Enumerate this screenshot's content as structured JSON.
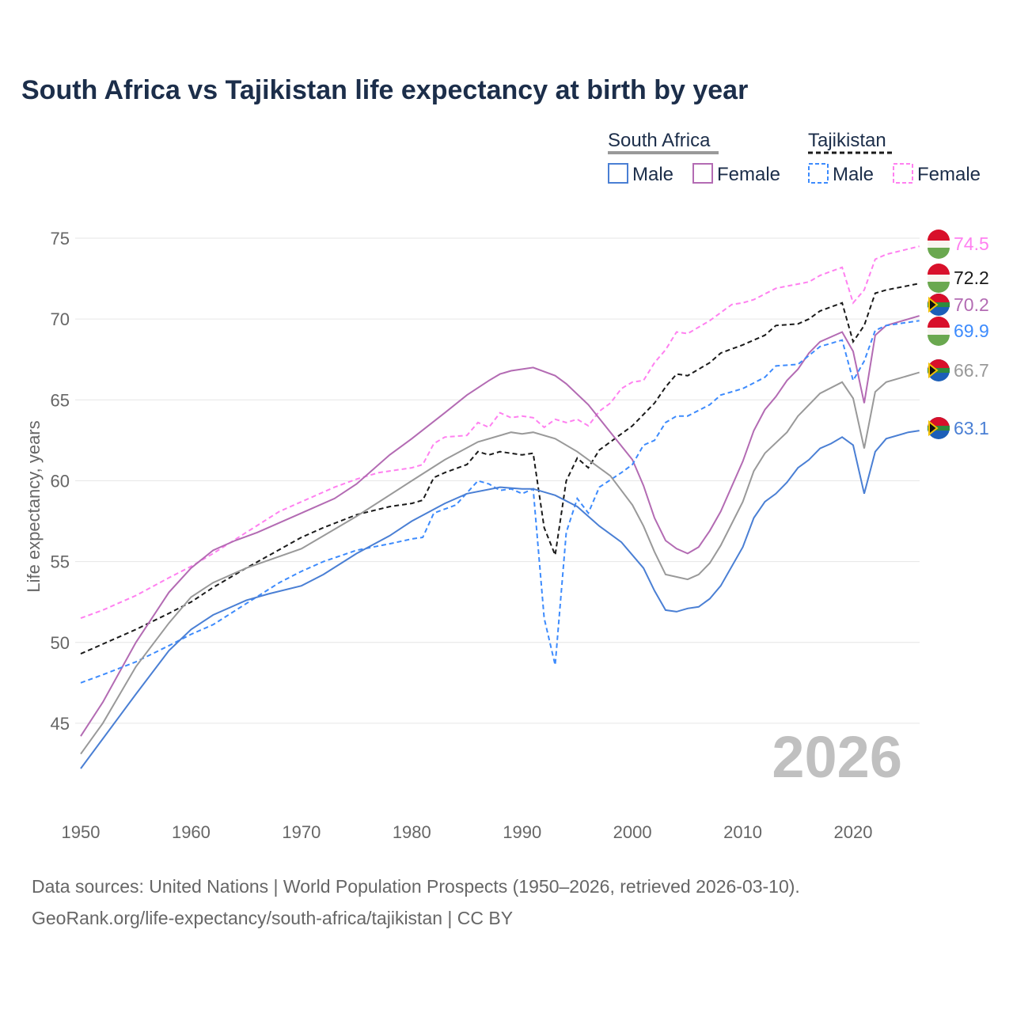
{
  "chart_data": {
    "type": "line",
    "title": "South Africa vs Tajikistan life expectancy at birth by year",
    "ylabel": "Life expectancy, years",
    "xlabel": "",
    "xlim": [
      1950,
      2026
    ],
    "ylim": [
      40.3,
      77
    ],
    "xticks": [
      1950,
      1960,
      1970,
      1980,
      1990,
      2000,
      2010,
      2020
    ],
    "yticks": [
      45,
      50,
      55,
      60,
      65,
      70,
      75
    ],
    "grid": "horizontal",
    "watermark_year": "2026",
    "legend": {
      "placement": "top-right",
      "groups": [
        {
          "name": "South Africa",
          "items": [
            "Male",
            "Female"
          ]
        },
        {
          "name": "Tajikistan",
          "items": [
            "Male",
            "Female"
          ]
        }
      ]
    },
    "series": [
      {
        "name": "Tajikistan Female",
        "country": "Tajikistan",
        "color": "#ff80f0",
        "dash": true,
        "end_label": "74.5",
        "points": [
          [
            1950,
            51.5
          ],
          [
            1952,
            52.0
          ],
          [
            1955,
            52.9
          ],
          [
            1958,
            54.0
          ],
          [
            1960,
            54.7
          ],
          [
            1962,
            55.5
          ],
          [
            1965,
            56.8
          ],
          [
            1968,
            58.1
          ],
          [
            1970,
            58.7
          ],
          [
            1973,
            59.6
          ],
          [
            1975,
            60.1
          ],
          [
            1977,
            60.5
          ],
          [
            1980,
            60.8
          ],
          [
            1981,
            61.0
          ],
          [
            1982,
            62.3
          ],
          [
            1983,
            62.7
          ],
          [
            1985,
            62.8
          ],
          [
            1986,
            63.6
          ],
          [
            1987,
            63.3
          ],
          [
            1988,
            64.2
          ],
          [
            1989,
            63.9
          ],
          [
            1990,
            64.0
          ],
          [
            1991,
            63.9
          ],
          [
            1992,
            63.3
          ],
          [
            1993,
            63.8
          ],
          [
            1994,
            63.6
          ],
          [
            1995,
            63.8
          ],
          [
            1996,
            63.4
          ],
          [
            1997,
            64.3
          ],
          [
            1998,
            64.8
          ],
          [
            1999,
            65.7
          ],
          [
            2000,
            66.1
          ],
          [
            2001,
            66.2
          ],
          [
            2002,
            67.3
          ],
          [
            2003,
            68.1
          ],
          [
            2004,
            69.2
          ],
          [
            2005,
            69.1
          ],
          [
            2007,
            69.9
          ],
          [
            2008,
            70.4
          ],
          [
            2009,
            70.9
          ],
          [
            2010,
            71.0
          ],
          [
            2011,
            71.2
          ],
          [
            2013,
            71.9
          ],
          [
            2016,
            72.3
          ],
          [
            2017,
            72.7
          ],
          [
            2019,
            73.2
          ],
          [
            2020,
            71.0
          ],
          [
            2021,
            71.8
          ],
          [
            2022,
            73.7
          ],
          [
            2023,
            74.0
          ],
          [
            2026,
            74.5
          ]
        ]
      },
      {
        "name": "Tajikistan",
        "country": "Tajikistan",
        "color": "#1a1a1a",
        "dash": true,
        "end_label": "72.2",
        "points": [
          [
            1950,
            49.3
          ],
          [
            1955,
            50.8
          ],
          [
            1958,
            51.8
          ],
          [
            1960,
            52.5
          ],
          [
            1962,
            53.4
          ],
          [
            1965,
            54.6
          ],
          [
            1970,
            56.5
          ],
          [
            1972,
            57.1
          ],
          [
            1975,
            57.9
          ],
          [
            1978,
            58.4
          ],
          [
            1980,
            58.6
          ],
          [
            1981,
            58.8
          ],
          [
            1982,
            60.2
          ],
          [
            1983,
            60.5
          ],
          [
            1985,
            61.0
          ],
          [
            1986,
            61.8
          ],
          [
            1987,
            61.6
          ],
          [
            1988,
            61.8
          ],
          [
            1990,
            61.6
          ],
          [
            1991,
            61.7
          ],
          [
            1992,
            57.1
          ],
          [
            1993,
            55.4
          ],
          [
            1994,
            60.0
          ],
          [
            1995,
            61.4
          ],
          [
            1996,
            60.8
          ],
          [
            1997,
            61.9
          ],
          [
            1999,
            62.9
          ],
          [
            2000,
            63.4
          ],
          [
            2002,
            64.8
          ],
          [
            2003,
            65.8
          ],
          [
            2004,
            66.6
          ],
          [
            2005,
            66.5
          ],
          [
            2007,
            67.3
          ],
          [
            2008,
            67.9
          ],
          [
            2010,
            68.4
          ],
          [
            2012,
            69.0
          ],
          [
            2013,
            69.6
          ],
          [
            2015,
            69.7
          ],
          [
            2016,
            70.0
          ],
          [
            2017,
            70.5
          ],
          [
            2019,
            71.0
          ],
          [
            2020,
            68.6
          ],
          [
            2021,
            69.6
          ],
          [
            2022,
            71.6
          ],
          [
            2023,
            71.8
          ],
          [
            2026,
            72.2
          ]
        ]
      },
      {
        "name": "South Africa Female",
        "country": "South Africa",
        "color": "#b36bb3",
        "dash": false,
        "end_label": "70.2",
        "points": [
          [
            1950,
            44.2
          ],
          [
            1952,
            46.3
          ],
          [
            1955,
            50.0
          ],
          [
            1958,
            53.1
          ],
          [
            1960,
            54.6
          ],
          [
            1962,
            55.7
          ],
          [
            1964,
            56.3
          ],
          [
            1966,
            56.8
          ],
          [
            1970,
            58.0
          ],
          [
            1973,
            58.9
          ],
          [
            1975,
            59.8
          ],
          [
            1978,
            61.6
          ],
          [
            1980,
            62.6
          ],
          [
            1983,
            64.2
          ],
          [
            1985,
            65.3
          ],
          [
            1987,
            66.2
          ],
          [
            1988,
            66.6
          ],
          [
            1989,
            66.8
          ],
          [
            1991,
            67.0
          ],
          [
            1993,
            66.5
          ],
          [
            1994,
            66.0
          ],
          [
            1996,
            64.7
          ],
          [
            1998,
            63.0
          ],
          [
            2000,
            61.3
          ],
          [
            2001,
            59.7
          ],
          [
            2002,
            57.7
          ],
          [
            2003,
            56.3
          ],
          [
            2004,
            55.8
          ],
          [
            2005,
            55.5
          ],
          [
            2006,
            55.9
          ],
          [
            2007,
            56.9
          ],
          [
            2008,
            58.1
          ],
          [
            2010,
            61.2
          ],
          [
            2011,
            63.1
          ],
          [
            2012,
            64.4
          ],
          [
            2013,
            65.2
          ],
          [
            2014,
            66.2
          ],
          [
            2015,
            66.9
          ],
          [
            2016,
            67.9
          ],
          [
            2017,
            68.6
          ],
          [
            2019,
            69.2
          ],
          [
            2020,
            68.0
          ],
          [
            2021,
            64.8
          ],
          [
            2022,
            69.0
          ],
          [
            2023,
            69.6
          ],
          [
            2026,
            70.2
          ]
        ]
      },
      {
        "name": "Tajikistan Male",
        "country": "Tajikistan",
        "color": "#3d8bfd",
        "dash": true,
        "end_label": "69.9",
        "points": [
          [
            1950,
            47.5
          ],
          [
            1952,
            48.0
          ],
          [
            1955,
            48.8
          ],
          [
            1958,
            49.8
          ],
          [
            1960,
            50.5
          ],
          [
            1962,
            51.1
          ],
          [
            1965,
            52.4
          ],
          [
            1968,
            53.7
          ],
          [
            1970,
            54.4
          ],
          [
            1972,
            55.0
          ],
          [
            1975,
            55.7
          ],
          [
            1978,
            56.1
          ],
          [
            1980,
            56.4
          ],
          [
            1981,
            56.5
          ],
          [
            1982,
            58.0
          ],
          [
            1984,
            58.5
          ],
          [
            1986,
            60.0
          ],
          [
            1987,
            59.8
          ],
          [
            1988,
            59.4
          ],
          [
            1989,
            59.5
          ],
          [
            1990,
            59.2
          ],
          [
            1991,
            59.5
          ],
          [
            1992,
            51.5
          ],
          [
            1993,
            48.6
          ],
          [
            1994,
            56.8
          ],
          [
            1995,
            58.9
          ],
          [
            1996,
            58.0
          ],
          [
            1997,
            59.6
          ],
          [
            1999,
            60.5
          ],
          [
            2000,
            61.0
          ],
          [
            2001,
            62.2
          ],
          [
            2002,
            62.5
          ],
          [
            2003,
            63.6
          ],
          [
            2004,
            64.0
          ],
          [
            2005,
            64.0
          ],
          [
            2007,
            64.7
          ],
          [
            2008,
            65.3
          ],
          [
            2010,
            65.7
          ],
          [
            2012,
            66.4
          ],
          [
            2013,
            67.1
          ],
          [
            2015,
            67.2
          ],
          [
            2017,
            68.3
          ],
          [
            2019,
            68.7
          ],
          [
            2020,
            66.2
          ],
          [
            2021,
            67.4
          ],
          [
            2022,
            69.3
          ],
          [
            2023,
            69.6
          ],
          [
            2026,
            69.9
          ]
        ]
      },
      {
        "name": "South Africa",
        "country": "South Africa",
        "color": "#999999",
        "dash": false,
        "end_label": "66.7",
        "points": [
          [
            1950,
            43.1
          ],
          [
            1952,
            45.0
          ],
          [
            1955,
            48.5
          ],
          [
            1958,
            51.2
          ],
          [
            1960,
            52.8
          ],
          [
            1962,
            53.7
          ],
          [
            1965,
            54.6
          ],
          [
            1970,
            55.8
          ],
          [
            1975,
            57.8
          ],
          [
            1980,
            60.0
          ],
          [
            1983,
            61.3
          ],
          [
            1986,
            62.4
          ],
          [
            1989,
            63.0
          ],
          [
            1990,
            62.9
          ],
          [
            1991,
            63.0
          ],
          [
            1993,
            62.6
          ],
          [
            1995,
            61.8
          ],
          [
            1998,
            60.3
          ],
          [
            2000,
            58.5
          ],
          [
            2001,
            57.2
          ],
          [
            2002,
            55.6
          ],
          [
            2003,
            54.2
          ],
          [
            2005,
            53.9
          ],
          [
            2006,
            54.2
          ],
          [
            2007,
            54.9
          ],
          [
            2008,
            56.0
          ],
          [
            2010,
            58.7
          ],
          [
            2011,
            60.6
          ],
          [
            2012,
            61.7
          ],
          [
            2014,
            63.0
          ],
          [
            2015,
            64.0
          ],
          [
            2017,
            65.4
          ],
          [
            2019,
            66.1
          ],
          [
            2020,
            65.1
          ],
          [
            2021,
            62.0
          ],
          [
            2022,
            65.5
          ],
          [
            2023,
            66.1
          ],
          [
            2026,
            66.7
          ]
        ]
      },
      {
        "name": "South Africa Male",
        "country": "South Africa",
        "color": "#4a7fd4",
        "dash": false,
        "end_label": "63.1",
        "points": [
          [
            1950,
            42.2
          ],
          [
            1955,
            46.8
          ],
          [
            1958,
            49.5
          ],
          [
            1960,
            50.8
          ],
          [
            1962,
            51.7
          ],
          [
            1965,
            52.6
          ],
          [
            1967,
            53.0
          ],
          [
            1970,
            53.5
          ],
          [
            1972,
            54.2
          ],
          [
            1975,
            55.5
          ],
          [
            1978,
            56.6
          ],
          [
            1980,
            57.5
          ],
          [
            1983,
            58.6
          ],
          [
            1985,
            59.2
          ],
          [
            1988,
            59.6
          ],
          [
            1990,
            59.5
          ],
          [
            1991,
            59.5
          ],
          [
            1993,
            59.1
          ],
          [
            1995,
            58.4
          ],
          [
            1997,
            57.2
          ],
          [
            1999,
            56.2
          ],
          [
            2001,
            54.6
          ],
          [
            2002,
            53.2
          ],
          [
            2003,
            52.0
          ],
          [
            2004,
            51.9
          ],
          [
            2005,
            52.1
          ],
          [
            2006,
            52.2
          ],
          [
            2007,
            52.7
          ],
          [
            2008,
            53.5
          ],
          [
            2010,
            55.9
          ],
          [
            2011,
            57.7
          ],
          [
            2012,
            58.7
          ],
          [
            2013,
            59.2
          ],
          [
            2014,
            59.9
          ],
          [
            2015,
            60.8
          ],
          [
            2016,
            61.3
          ],
          [
            2017,
            62.0
          ],
          [
            2018,
            62.3
          ],
          [
            2019,
            62.7
          ],
          [
            2020,
            62.2
          ],
          [
            2021,
            59.2
          ],
          [
            2022,
            61.8
          ],
          [
            2023,
            62.6
          ],
          [
            2025,
            63.0
          ],
          [
            2026,
            63.1
          ]
        ]
      }
    ]
  },
  "footer": {
    "line1": "Data sources: United Nations | World Population Prospects (1950–2026, retrieved 2026-03-10).",
    "line2": "GeoRank.org/life-expectancy/south-africa/tajikistan | CC BY"
  }
}
